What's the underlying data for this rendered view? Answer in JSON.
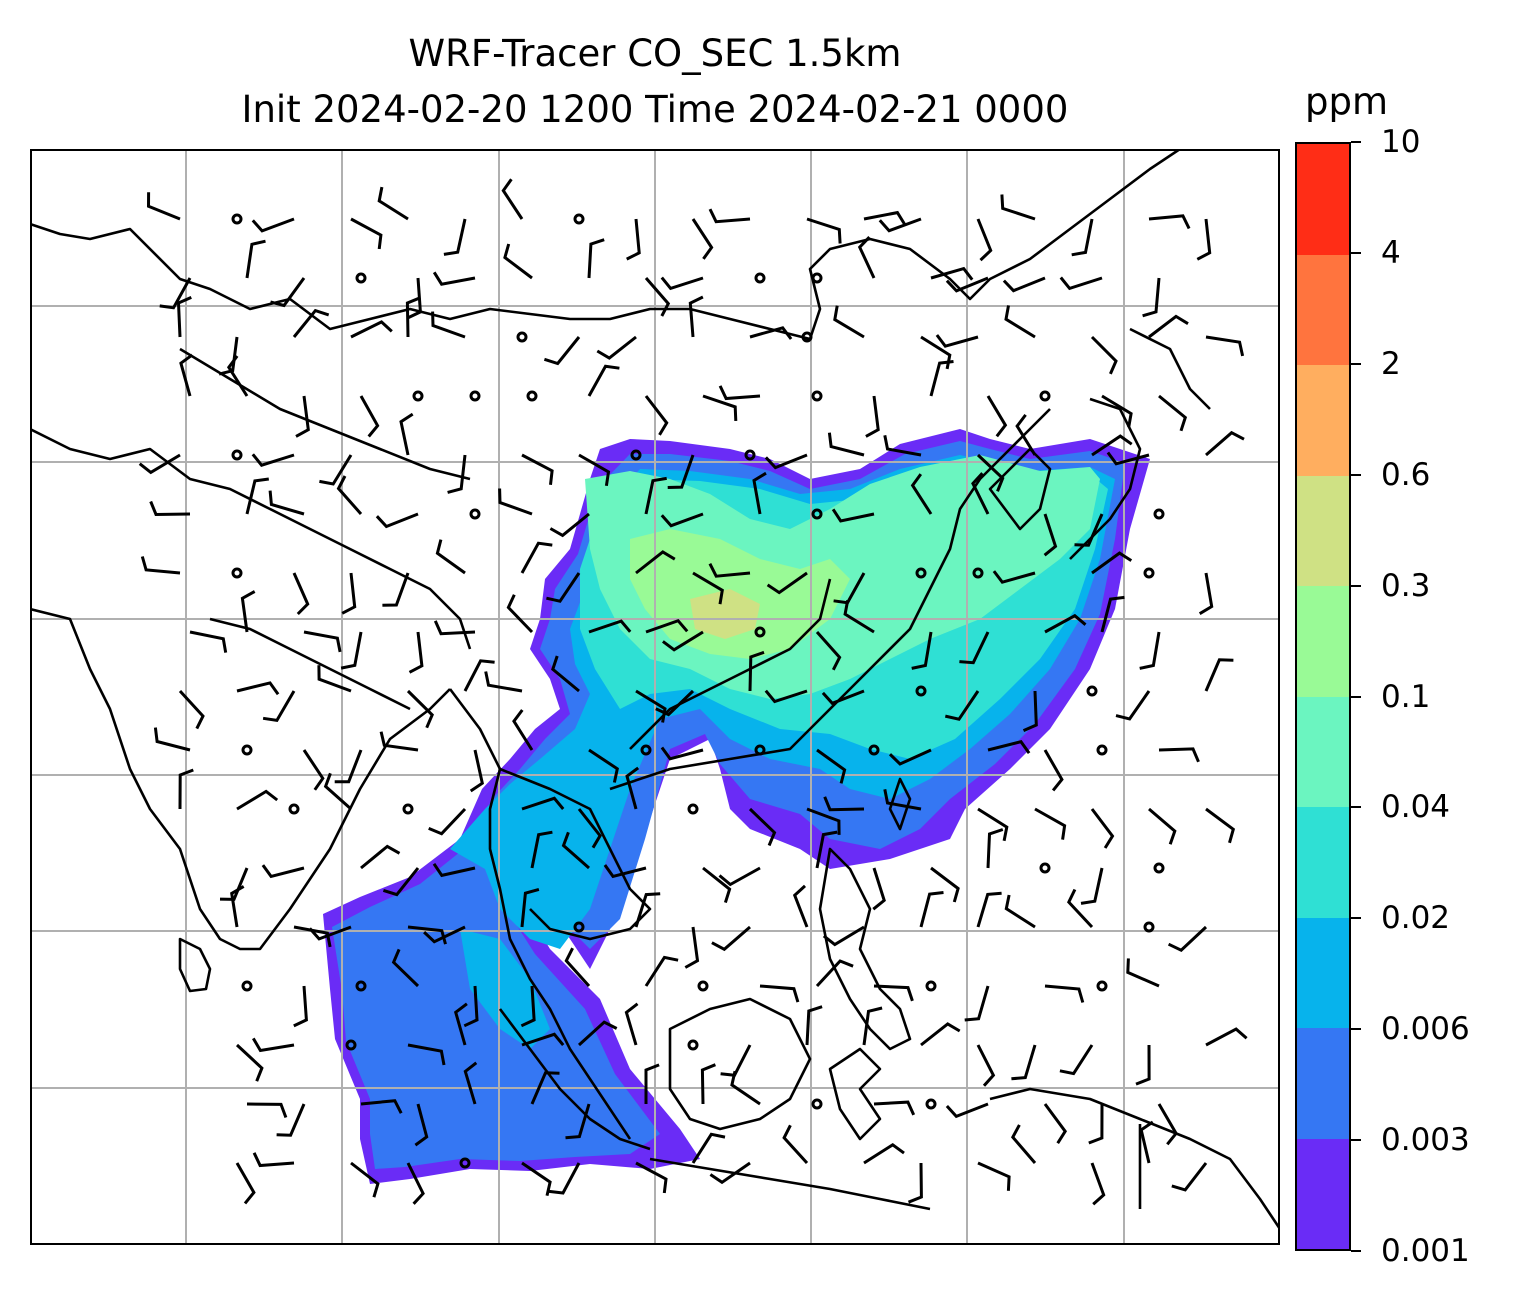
{
  "title_line1": "WRF-Tracer CO_SEC 1.5km",
  "title_line2": "Init 2024-02-20 1200 Time 2024-02-21 0000",
  "colorbar": {
    "unit": "ppm",
    "levels": [
      "0.001",
      "0.003",
      "0.006",
      "0.02",
      "0.04",
      "0.1",
      "0.3",
      "0.6",
      "2",
      "4",
      "10"
    ],
    "colors": [
      "#6a2cf6",
      "#3577f3",
      "#07b3ec",
      "#2fe0d4",
      "#6bf5c0",
      "#99fa96",
      "#cfe184",
      "#ffae5f",
      "#ff743e",
      "#ff2d16"
    ]
  },
  "map": {
    "gridlines": true,
    "grid_color": "#b0b0b0",
    "coastline_color": "#000000",
    "barb_color": "#000000"
  }
}
